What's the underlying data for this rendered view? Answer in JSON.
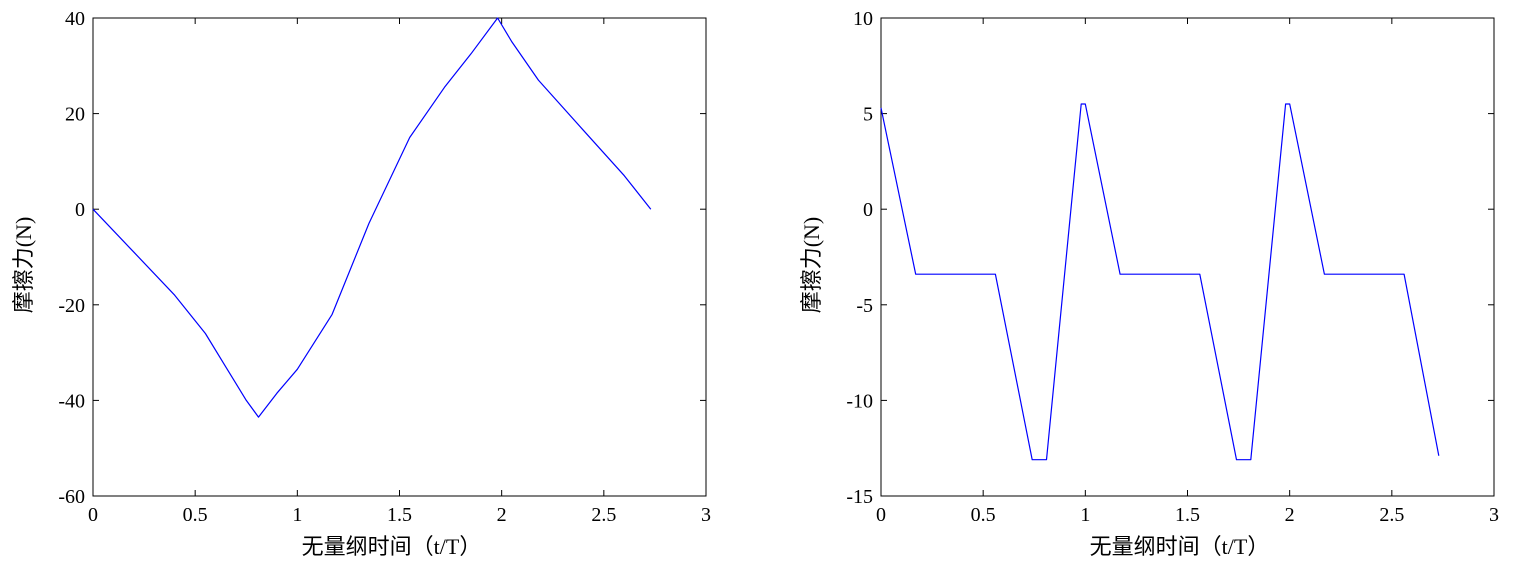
{
  "chart_data": [
    {
      "type": "line",
      "xlabel": "无量纲时间（t/T）",
      "ylabel": "摩擦力(N)",
      "xlim": [
        0,
        3
      ],
      "ylim": [
        -60,
        40
      ],
      "xticks": [
        0,
        0.5,
        1,
        1.5,
        2,
        2.5,
        3
      ],
      "yticks": [
        -60,
        -40,
        -20,
        0,
        20,
        40
      ],
      "xtick_labels": [
        "0",
        "0.5",
        "1",
        "1.5",
        "2",
        "2.5",
        "3"
      ],
      "ytick_labels": [
        "-60",
        "-40",
        "-20",
        "0",
        "20",
        "40"
      ],
      "grid": false,
      "series": [
        {
          "color": "#0000ff",
          "x": [
            0,
            0.2,
            0.4,
            0.55,
            0.65,
            0.75,
            0.81,
            0.9,
            1.0,
            1.17,
            1.35,
            1.55,
            1.72,
            1.85,
            1.98,
            2.05,
            2.18,
            2.4,
            2.6,
            2.73
          ],
          "y": [
            0,
            -9,
            -18,
            -26,
            -33,
            -40,
            -43.5,
            -38.5,
            -33.5,
            -22,
            -3,
            15,
            25.5,
            32.5,
            40,
            35,
            27,
            16.5,
            7,
            0
          ]
        }
      ]
    },
    {
      "type": "line",
      "xlabel": "无量纲时间（t/T）",
      "ylabel": "摩擦力(N)",
      "xlim": [
        0,
        3
      ],
      "ylim": [
        -15,
        10
      ],
      "xticks": [
        0,
        0.5,
        1,
        1.5,
        2,
        2.5,
        3
      ],
      "yticks": [
        -15,
        -10,
        -5,
        0,
        5,
        10
      ],
      "xtick_labels": [
        "0",
        "0.5",
        "1",
        "1.5",
        "2",
        "2.5",
        "3"
      ],
      "ytick_labels": [
        "-15",
        "-10",
        "-5",
        "0",
        "5",
        "10"
      ],
      "grid": false,
      "series": [
        {
          "color": "#0000ff",
          "x": [
            0,
            0.17,
            0.56,
            0.74,
            0.81,
            0.98,
            1.0,
            1.17,
            1.56,
            1.74,
            1.81,
            1.98,
            2.0,
            2.17,
            2.56,
            2.73
          ],
          "y": [
            5.3,
            -3.4,
            -3.4,
            -13.1,
            -13.1,
            5.5,
            5.5,
            -3.4,
            -3.4,
            -13.1,
            -13.1,
            5.5,
            5.5,
            -3.4,
            -3.4,
            -12.9
          ]
        }
      ]
    }
  ]
}
